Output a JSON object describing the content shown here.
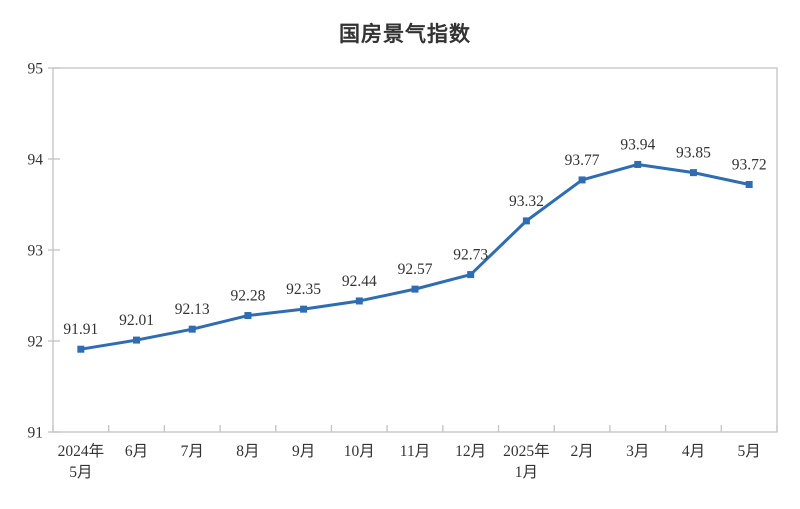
{
  "page": {
    "background_color": "#ffffff"
  },
  "chart_data": {
    "type": "line",
    "title": "国房景气指数",
    "categories": [
      [
        "2024年",
        "5月"
      ],
      [
        "6月"
      ],
      [
        "7月"
      ],
      [
        "8月"
      ],
      [
        "9月"
      ],
      [
        "10月"
      ],
      [
        "11月"
      ],
      [
        "12月"
      ],
      [
        "2025年",
        "1月"
      ],
      [
        "2月"
      ],
      [
        "3月"
      ],
      [
        "4月"
      ],
      [
        "5月"
      ]
    ],
    "values": [
      91.91,
      92.01,
      92.13,
      92.28,
      92.35,
      92.44,
      92.57,
      92.73,
      93.32,
      93.77,
      93.94,
      93.85,
      93.72
    ],
    "data_labels": [
      "91.91",
      "92.01",
      "92.13",
      "92.28",
      "92.35",
      "92.44",
      "92.57",
      "92.73",
      "93.32",
      "93.77",
      "93.94",
      "93.85",
      "93.72"
    ],
    "xlabel": "",
    "ylabel": "",
    "ylim": [
      91,
      95
    ],
    "yticks": [
      91,
      92,
      93,
      94,
      95
    ],
    "grid": false,
    "legend": "none",
    "colors": {
      "line": "#2E6DB4",
      "marker": "#2E6DB4",
      "axis": "#C6C3C1",
      "text": "#333333",
      "title": "#333333"
    }
  }
}
